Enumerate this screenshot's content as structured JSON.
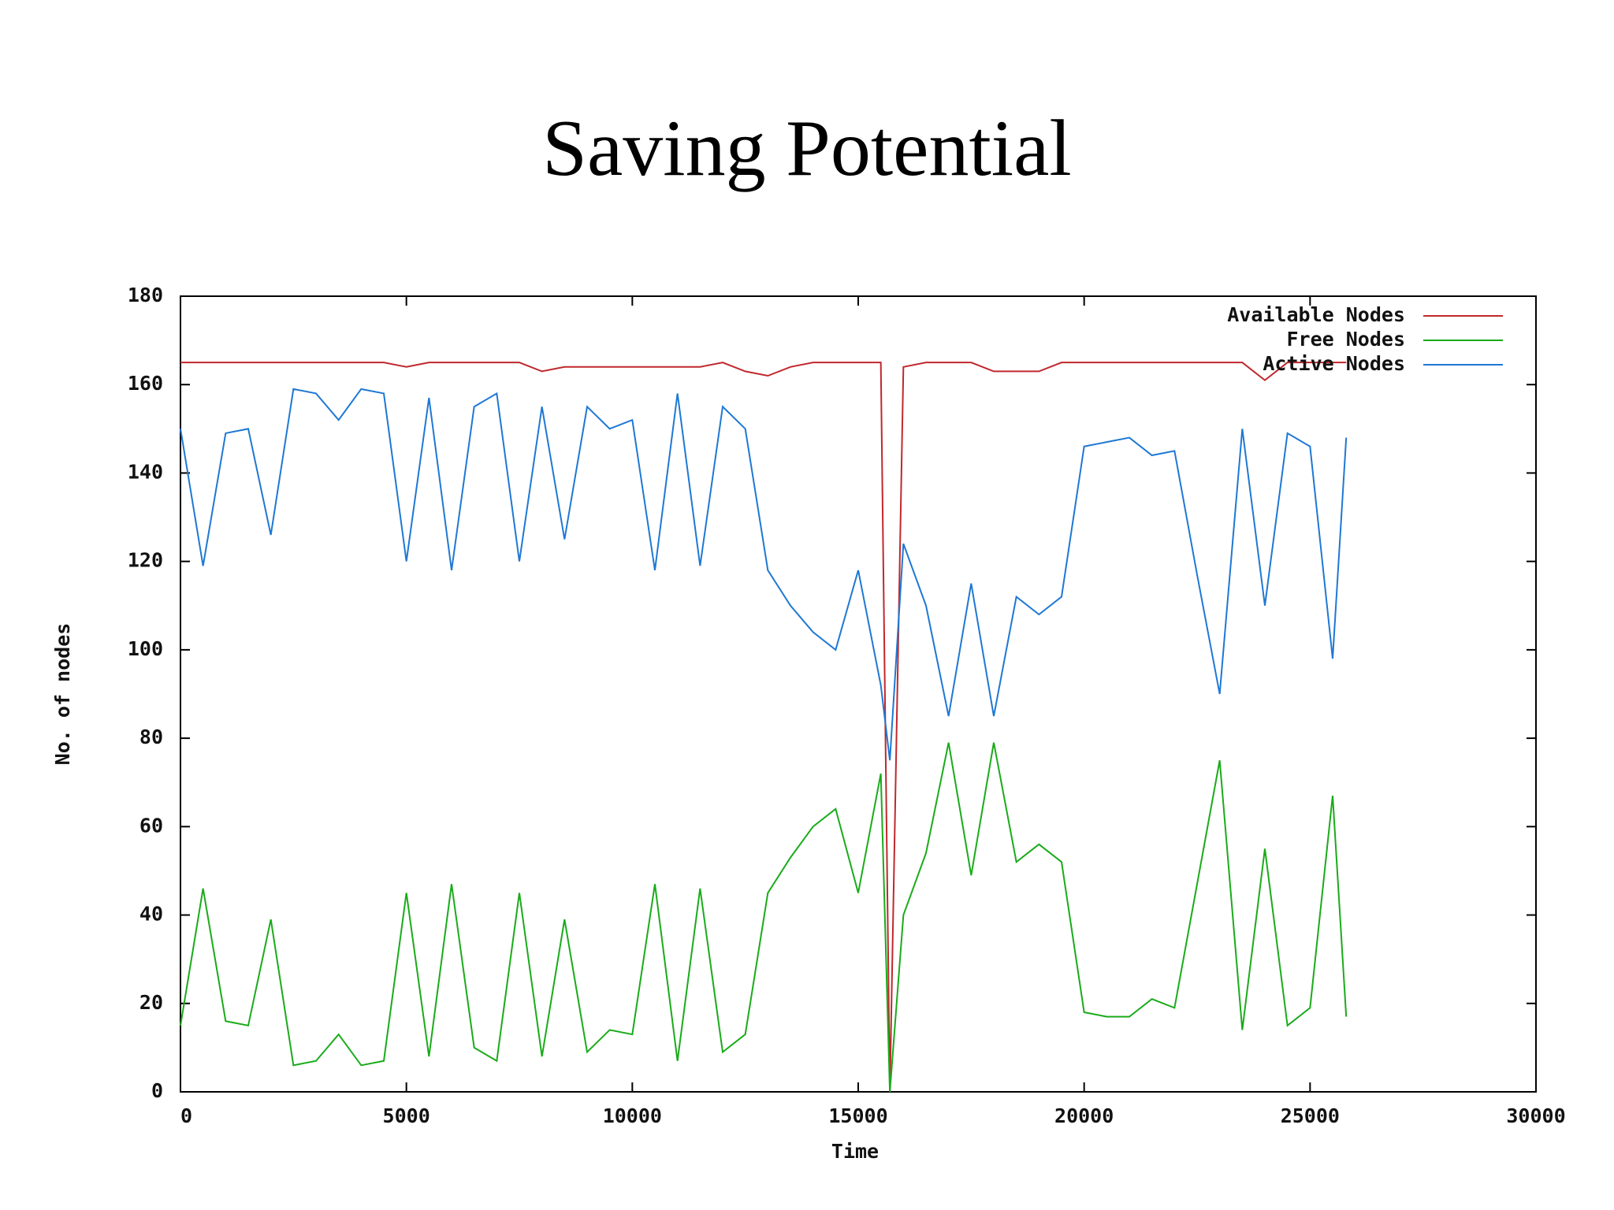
{
  "chart_data": {
    "type": "line",
    "title": "Saving Potential",
    "xlabel": "Time",
    "ylabel": "No. of nodes",
    "x": [
      0,
      500,
      1000,
      1500,
      2000,
      2500,
      3000,
      3500,
      4000,
      4500,
      5000,
      5500,
      6000,
      6500,
      7000,
      7500,
      8000,
      8500,
      9000,
      9500,
      10000,
      10500,
      11000,
      11500,
      12000,
      12500,
      13000,
      13500,
      14000,
      14500,
      15000,
      15500,
      15700,
      16000,
      16500,
      17000,
      17500,
      18000,
      18500,
      19000,
      19500,
      20000,
      20500,
      21000,
      21500,
      22000,
      22500,
      23000,
      23500,
      24000,
      24500,
      25000,
      25500,
      25800
    ],
    "series": [
      {
        "name": "Available Nodes",
        "color": "#c0282d",
        "values": [
          165,
          165,
          165,
          165,
          165,
          165,
          165,
          165,
          165,
          165,
          164,
          165,
          165,
          165,
          165,
          165,
          163,
          164,
          164,
          164,
          164,
          164,
          164,
          164,
          165,
          163,
          162,
          164,
          165,
          165,
          165,
          165,
          0,
          164,
          165,
          165,
          165,
          163,
          163,
          163,
          165,
          165,
          165,
          165,
          165,
          165,
          165,
          165,
          165,
          161,
          165,
          165,
          165,
          165
        ]
      },
      {
        "name": "Free Nodes",
        "color": "#1aab1a",
        "values": [
          15,
          46,
          16,
          15,
          39,
          6,
          7,
          13,
          6,
          7,
          45,
          8,
          47,
          10,
          7,
          45,
          8,
          39,
          9,
          14,
          13,
          47,
          7,
          46,
          9,
          13,
          45,
          53,
          60,
          64,
          45,
          72,
          0,
          40,
          54,
          79,
          49,
          79,
          52,
          56,
          52,
          18,
          17,
          17,
          21,
          19,
          47,
          75,
          14,
          55,
          15,
          19,
          67,
          17
        ]
      },
      {
        "name": "Active Nodes",
        "color": "#1e78d4",
        "values": [
          150,
          119,
          149,
          150,
          126,
          159,
          158,
          152,
          159,
          158,
          120,
          157,
          118,
          155,
          158,
          120,
          155,
          125,
          155,
          150,
          152,
          118,
          158,
          119,
          155,
          150,
          118,
          110,
          104,
          100,
          118,
          92,
          75,
          124,
          110,
          85,
          115,
          85,
          112,
          108,
          112,
          146,
          147,
          148,
          144,
          145,
          117,
          90,
          150,
          110,
          149,
          146,
          98,
          148
        ]
      }
    ],
    "xlim": [
      0,
      30000
    ],
    "xticks": [
      0,
      5000,
      10000,
      15000,
      20000,
      25000,
      30000
    ],
    "ylim": [
      0,
      180
    ],
    "yticks": [
      0,
      20,
      40,
      60,
      80,
      100,
      120,
      140,
      160,
      180
    ],
    "legend": "top-right"
  }
}
